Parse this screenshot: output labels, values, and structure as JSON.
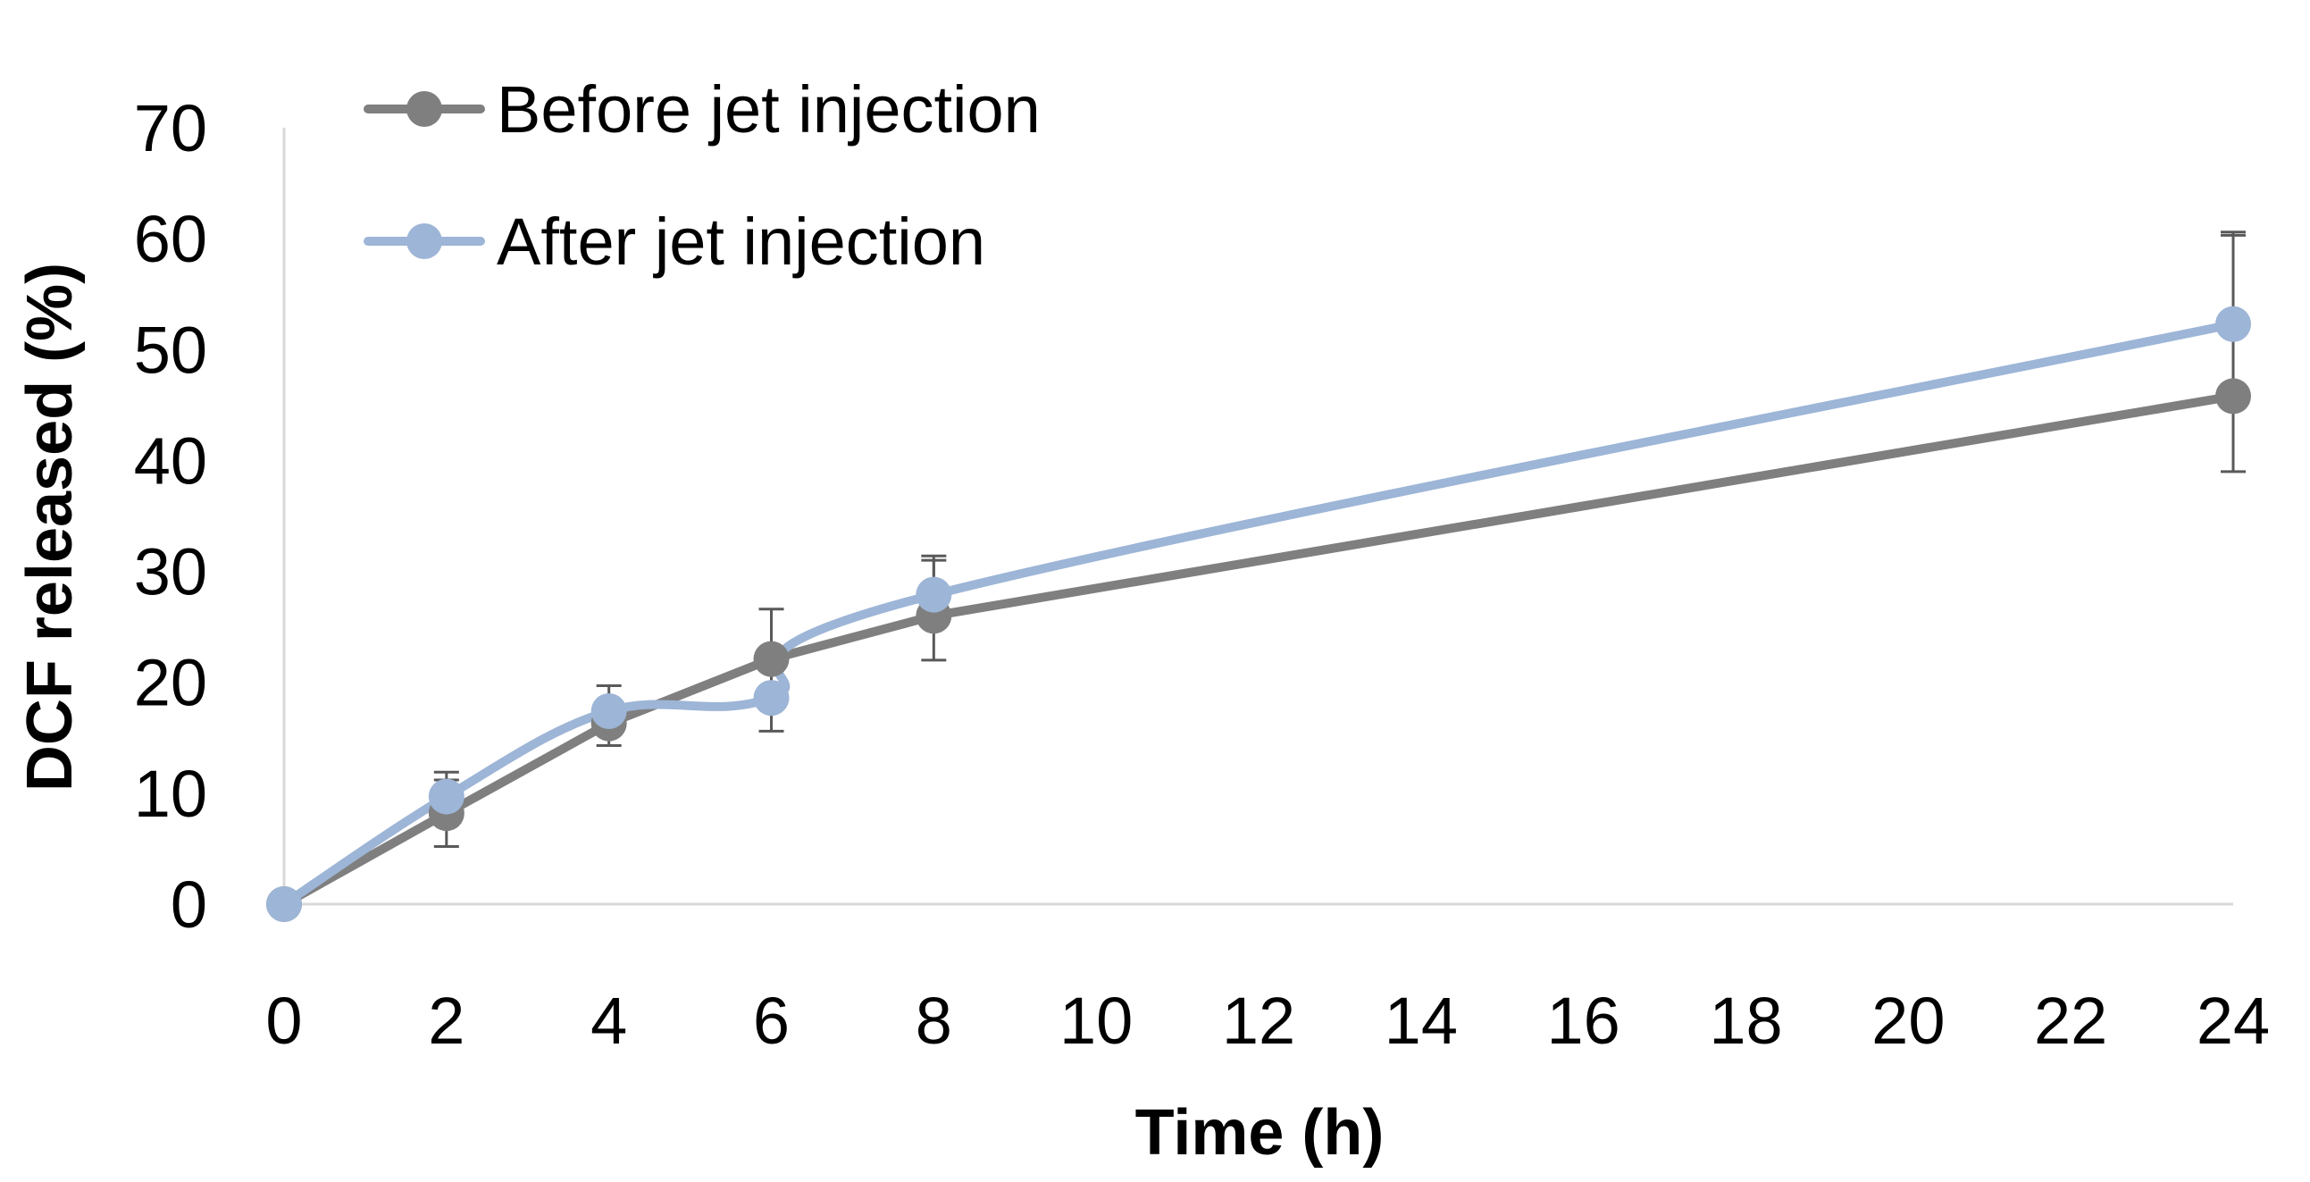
{
  "chart_data": {
    "type": "line",
    "title": "",
    "xlabel": "Time (h)",
    "ylabel": "DCF released (%)",
    "xlim": [
      0,
      24
    ],
    "ylim": [
      0,
      70
    ],
    "x_ticks": [
      0,
      2,
      4,
      6,
      8,
      10,
      12,
      14,
      16,
      18,
      20,
      22,
      24
    ],
    "y_ticks": [
      0,
      10,
      20,
      30,
      40,
      50,
      60,
      70
    ],
    "grid": false,
    "legend_position": "top-left",
    "series": [
      {
        "name": "Before jet injection",
        "color": "#7f7f7f",
        "smooth": false,
        "x": [
          0,
          2,
          4,
          6,
          8,
          24
        ],
        "y": [
          0,
          8.2,
          16.3,
          22.1,
          26.0,
          45.8
        ],
        "err_upper": [
          0,
          3.0,
          2.0,
          4.5,
          5.0,
          14.8
        ],
        "err_lower": [
          0,
          3.0,
          2.0,
          4.5,
          4.0,
          6.8
        ]
      },
      {
        "name": "After jet injection",
        "color": "#9db5d6",
        "smooth": true,
        "x": [
          0,
          2,
          4,
          6,
          8,
          24
        ],
        "y": [
          0,
          9.7,
          17.4,
          18.6,
          27.9,
          52.3
        ],
        "err_upper": [
          0,
          2.2,
          2.3,
          0,
          3.5,
          8.0
        ],
        "err_lower": [
          0,
          0,
          0,
          3.0,
          0,
          0
        ]
      }
    ]
  }
}
